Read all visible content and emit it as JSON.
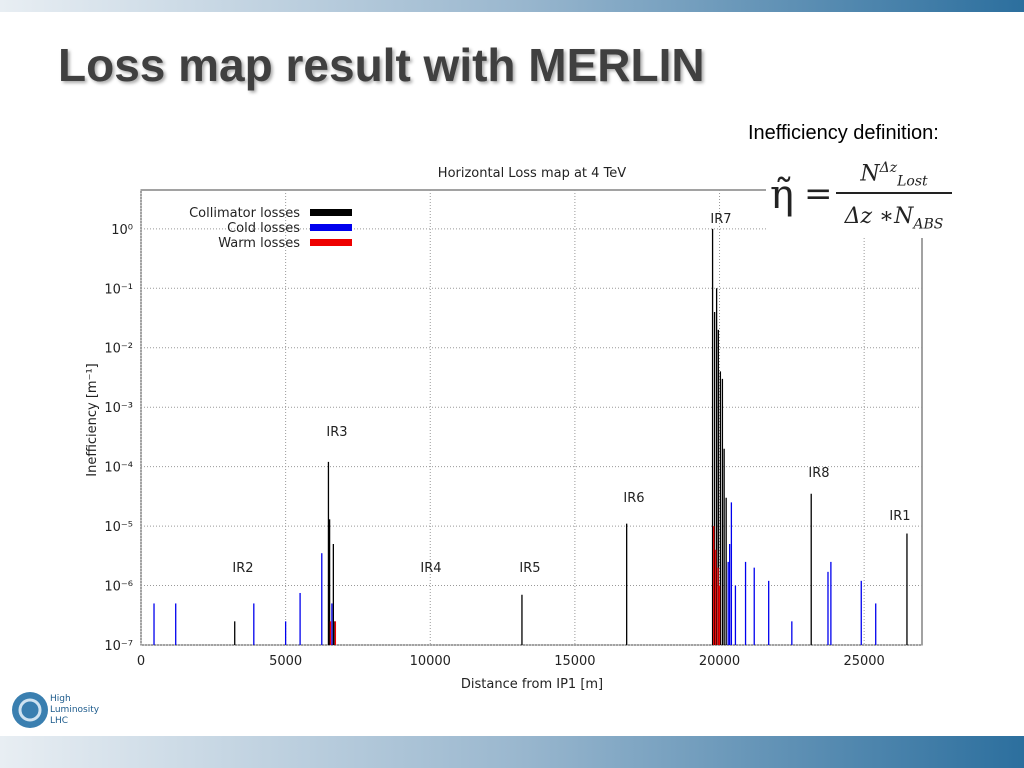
{
  "slide": {
    "title": "Loss map result with MERLIN",
    "definition_label": "Inefficiency definition:",
    "formula": {
      "lhs": "η̃",
      "equals": "=",
      "num_base": "N",
      "num_sup": "Δz",
      "num_sub": "Lost",
      "den": "Δz ∗N",
      "den_sub": "ABS"
    },
    "logo": [
      "High",
      "Luminosity",
      "LHC"
    ]
  },
  "chart_data": {
    "type": "stem",
    "title": "Horizontal Loss map at 4 TeV",
    "x_label": "Distance from IP1 [m]",
    "y_label": "Inefficiency [m⁻¹]",
    "xlim": [
      0,
      27000
    ],
    "xticks": [
      0,
      5000,
      10000,
      15000,
      20000,
      25000
    ],
    "ylim": [
      1e-07,
      4.5
    ],
    "log_y": true,
    "grid": true,
    "legend": "upper left",
    "yticks": [
      {
        "value": 1e-07,
        "label": "10⁻⁷"
      },
      {
        "value": 1e-06,
        "label": "10⁻⁶"
      },
      {
        "value": 1e-05,
        "label": "10⁻⁵"
      },
      {
        "value": 0.0001,
        "label": "10⁻⁴"
      },
      {
        "value": 0.001,
        "label": "10⁻³"
      },
      {
        "value": 0.01,
        "label": "10⁻²"
      },
      {
        "value": 0.1,
        "label": "10⁻¹"
      },
      {
        "value": 1,
        "label": "10⁰"
      }
    ],
    "annotations": [
      "IR1",
      "IR2",
      "IR3",
      "IR4",
      "IR5",
      "IR6",
      "IR7",
      "IR8"
    ],
    "series": [
      {
        "name": "Collimator losses",
        "color": "#000000",
        "x": [
          3240,
          6480,
          6520,
          6650,
          6700,
          13170,
          16790,
          19760,
          19830,
          19900,
          19960,
          20030,
          20100,
          20160,
          20230,
          23170,
          26480
        ],
        "values": [
          2.5e-07,
          0.00012,
          1.3e-05,
          5e-06,
          2.5e-07,
          7e-07,
          1.1e-05,
          1.0,
          0.04,
          0.1,
          0.02,
          0.004,
          0.003,
          0.0002,
          3e-05,
          3.5e-05,
          7.5e-06
        ]
      },
      {
        "name": "Cold losses",
        "color": "#0000ee",
        "x": [
          450,
          1200,
          3900,
          5000,
          5500,
          6250,
          6600,
          20300,
          20350,
          20410,
          20550,
          20900,
          21200,
          21700,
          22500,
          23750,
          23850,
          24900,
          25400
        ],
        "values": [
          5e-07,
          5e-07,
          5e-07,
          2.5e-07,
          7.5e-07,
          3.5e-06,
          5e-07,
          2.5e-06,
          5e-06,
          2.5e-05,
          1e-06,
          2.5e-06,
          2e-06,
          1.2e-06,
          2.5e-07,
          1.7e-06,
          2.5e-06,
          1.2e-06,
          5e-07
        ]
      },
      {
        "name": "Warm losses",
        "color": "#ee0000",
        "x": [
          6550,
          6720,
          19800,
          19870,
          19950,
          20000
        ],
        "values": [
          2.5e-07,
          2.5e-07,
          1e-05,
          4e-06,
          2e-06,
          1e-06
        ]
      }
    ]
  }
}
